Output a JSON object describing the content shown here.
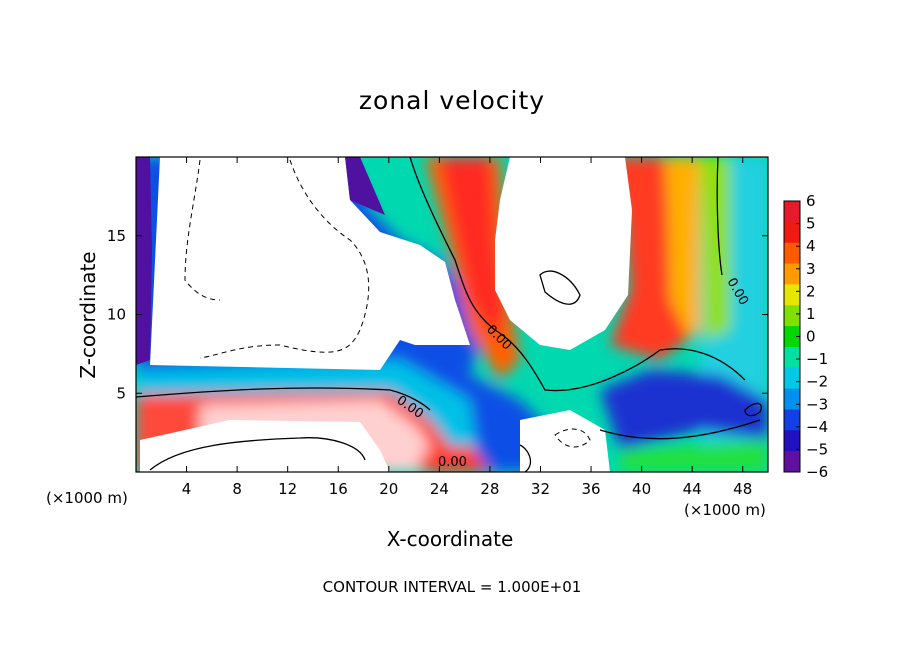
{
  "chart_data": {
    "type": "heatmap",
    "title": "zonal velocity",
    "xlabel": "X-coordinate",
    "ylabel": "Z-coordinate",
    "x_unit_left": "(×1000 m)",
    "x_unit_right": "(×1000 m)",
    "xlim": [
      0,
      50
    ],
    "ylim": [
      0,
      20
    ],
    "x_ticks": [
      4,
      8,
      12,
      16,
      20,
      24,
      28,
      32,
      36,
      40,
      44,
      48
    ],
    "y_ticks": [
      5,
      10,
      15
    ],
    "colorbar": {
      "ticks": [
        "6",
        "5",
        "4",
        "3",
        "2",
        "1",
        "0",
        "−1",
        "−2",
        "−3",
        "−4",
        "−5",
        "−6"
      ],
      "colors": [
        "#e61a2a",
        "#f01a10",
        "#ff5a00",
        "#ff9a00",
        "#e6e600",
        "#80e000",
        "#00d800",
        "#00e0a0",
        "#00c8e6",
        "#0090f0",
        "#1040e6",
        "#2010c0",
        "#6010a0"
      ]
    },
    "contour_labels": [
      "0.00",
      "0.00",
      "0.00",
      "0.00"
    ],
    "footer": "CONTOUR INTERVAL = 1.000E+01"
  }
}
